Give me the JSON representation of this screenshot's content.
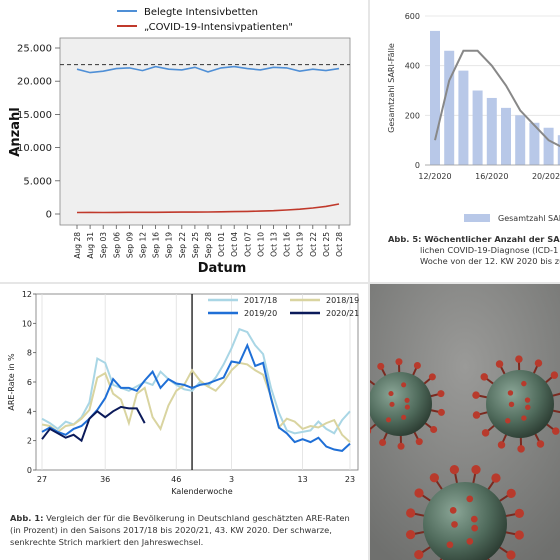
{
  "chart_data": [
    {
      "type": "line",
      "xlabel": "Datum",
      "ylabel": "Anzahl",
      "ylim": [
        0,
        25000
      ],
      "yticks": [
        "0",
        "5.000",
        "10.000",
        "15.000",
        "20.000",
        "25.000"
      ],
      "categories": [
        "Aug 28",
        "Aug 31",
        "Sep 03",
        "Sep 06",
        "Sep 09",
        "Sep 12",
        "Sep 16",
        "Sep 19",
        "Sep 22",
        "Sep 25",
        "Sep 28",
        "Oct 01",
        "Oct 04",
        "Oct 07",
        "Oct 10",
        "Oct 13",
        "Oct 16",
        "Oct 19",
        "Oct 22",
        "Oct 25",
        "Oct 28"
      ],
      "reference_line": 22500,
      "legend_position": "top",
      "series": [
        {
          "name": "Belegte Intensivbetten",
          "color": "#4f8fd6",
          "values": [
            21800,
            21300,
            21500,
            21900,
            22000,
            21600,
            22200,
            21800,
            21700,
            22100,
            21400,
            22000,
            22200,
            21900,
            21700,
            22100,
            22000,
            21500,
            21800,
            21600,
            21900
          ]
        },
        {
          "name": "„COVID-19-Intensivpatienten\"",
          "color": "#c0392b",
          "values": [
            230,
            240,
            230,
            240,
            250,
            250,
            260,
            270,
            280,
            290,
            300,
            330,
            360,
            390,
            440,
            500,
            600,
            720,
            900,
            1150,
            1500
          ]
        }
      ]
    },
    {
      "type": "bar",
      "ylabel": "Gesamtzahl SARI-Fälle",
      "ylim": [
        0,
        600
      ],
      "yticks": [
        "0",
        "200",
        "400",
        "600"
      ],
      "xticks": [
        "12/2020",
        "16/2020",
        "20/2020"
      ],
      "legend": [
        "Gesamtzahl SARI-Fälle"
      ],
      "bars": [
        540,
        460,
        380,
        300,
        270,
        230,
        200,
        170,
        150,
        120,
        110,
        100,
        90
      ],
      "line": [
        100,
        340,
        460,
        460,
        400,
        320,
        220,
        160,
        100,
        70,
        60,
        60,
        60
      ]
    },
    {
      "type": "line",
      "xlabel": "Kalenderwoche",
      "ylabel": "ARE-Rate in %",
      "ylim": [
        0,
        12
      ],
      "yticks": [
        "0",
        "2",
        "4",
        "6",
        "8",
        "10",
        "12"
      ],
      "xticks": [
        "27",
        "36",
        "46",
        "3",
        "13",
        "23"
      ],
      "legend_position": "top-right",
      "series": [
        {
          "name": "2017/18",
          "color": "#a9d6e5",
          "values": [
            3.5,
            3.2,
            2.8,
            3.3,
            3.1,
            3.6,
            4.6,
            7.6,
            7.3,
            5.8,
            5.6,
            5.4,
            5.7,
            6.0,
            5.8,
            6.7,
            6.2,
            5.8,
            5.5,
            5.4,
            6.0,
            5.7,
            6.3,
            7.2,
            8.3,
            9.6,
            9.4,
            8.5,
            7.9,
            5.6,
            3.9,
            2.7,
            2.5,
            2.6,
            2.7,
            3.3,
            2.8,
            2.5,
            3.4,
            4.0
          ]
        },
        {
          "name": "2018/19",
          "color": "#d9d4a0",
          "values": [
            3.1,
            3.0,
            2.6,
            3.0,
            3.1,
            3.5,
            4.1,
            6.3,
            6.6,
            5.2,
            4.8,
            3.2,
            5.2,
            5.6,
            3.6,
            2.8,
            4.4,
            5.4,
            5.8,
            6.8,
            6.1,
            5.7,
            5.4,
            6.0,
            6.8,
            7.3,
            7.2,
            6.8,
            6.5,
            5.0,
            2.9,
            3.5,
            3.3,
            2.8,
            3.0,
            2.9,
            3.2,
            3.4,
            2.4,
            1.9
          ]
        },
        {
          "name": "2019/20",
          "color": "#1f6fd6",
          "values": [
            2.6,
            2.9,
            2.6,
            2.4,
            2.8,
            3.0,
            3.5,
            4.1,
            4.9,
            6.2,
            5.6,
            5.6,
            5.4,
            6.1,
            6.7,
            5.6,
            6.2,
            5.9,
            5.8,
            5.6,
            5.8,
            5.9,
            6.1,
            6.3,
            7.4,
            7.3,
            8.5,
            7.1,
            7.3,
            4.9,
            2.9,
            2.5,
            1.9,
            2.1,
            1.9,
            2.2,
            1.6,
            1.4,
            1.3,
            1.8
          ]
        },
        {
          "name": "2020/21",
          "color": "#0b1a5a",
          "values": [
            2.1,
            2.8,
            2.5,
            2.2,
            2.4,
            2.0,
            3.5,
            4.0,
            3.6,
            4.0,
            4.3,
            4.2,
            4.2,
            3.2
          ]
        }
      ],
      "season_break_week": "1"
    }
  ],
  "panel2": {
    "caption_lines": [
      "Abb. 5: Wöchentlicher Anzahl der SARI-Fälle",
      "lichen COVID-19-Diagnose (ICD-1",
      "Woche von der 12. KW 2020 bis zu"
    ]
  },
  "panel3": {
    "caption_label": "Abb. 1:",
    "caption_text": "Vergleich der für die Bevölkerung in Deutschland geschätzten ARE-Raten (in Prozent) in den Saisons 2017/18 bis 2020/21, 43. KW 2020. Der schwarze, senkrechte Strich markiert den Jahreswechsel."
  },
  "colors": {
    "blue_line": "#4f8fd6",
    "red_line": "#c0392b",
    "bar_fill": "#b8c8e8",
    "virus_body": "#5a7565",
    "virus_spike": "#b83a2c"
  }
}
